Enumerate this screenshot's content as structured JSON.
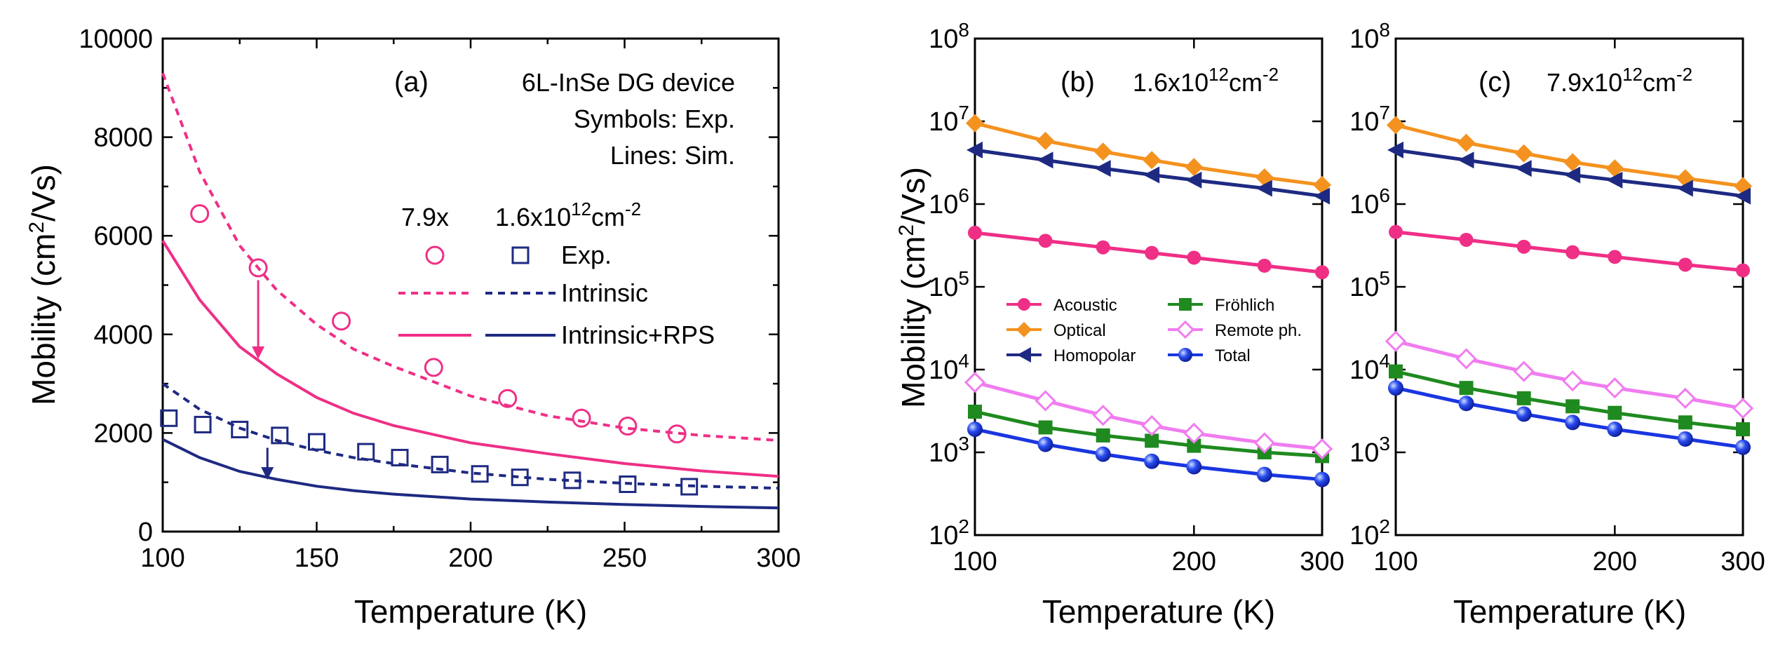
{
  "colors": {
    "pink": "#ef2f86",
    "navy": "#1e2a82",
    "orange": "#f4921f",
    "green": "#1f8a1f",
    "violet": "#f07cf0",
    "blue": "#1a36e0"
  },
  "chart_data": [
    {
      "type": "line",
      "panel": "(a)",
      "title": "6L-InSe DG device",
      "annotations": [
        "Symbols: Exp.",
        "Lines: Sim."
      ],
      "legend": {
        "col1_header": "7.9x",
        "col2_header": "1.6x10",
        "col2_header_sup": "12",
        "col2_header_unit": "cm",
        "col2_header_unit_sup": "-2",
        "row_exp": "Exp.",
        "row_intrinsic": "Intrinsic",
        "row_rps": "Intrinsic+RPS"
      },
      "xlabel": "Temperature (K)",
      "ylabel_main": "Mobility (cm",
      "ylabel_sup": "2",
      "ylabel_end": "/Vs)",
      "xlim": [
        100,
        300
      ],
      "ylim": [
        0,
        10000
      ],
      "xticks": [
        100,
        150,
        200,
        250,
        300
      ],
      "yticks": [
        0,
        2000,
        4000,
        6000,
        8000,
        10000
      ],
      "xtick_labels": [
        "100",
        "150",
        "200",
        "250",
        "300"
      ],
      "ytick_labels": [
        "0",
        "2000",
        "4000",
        "6000",
        "8000",
        "10000"
      ],
      "series": [
        {
          "name": "Exp. 7.9x10^12",
          "kind": "open-circle",
          "color": "#ef2f86",
          "x": [
            112,
            131,
            158,
            188,
            212,
            236,
            251,
            267
          ],
          "y": [
            6450,
            5350,
            4270,
            3330,
            2700,
            2300,
            2140,
            1980
          ]
        },
        {
          "name": "Exp. 1.6x10^12",
          "kind": "open-square",
          "color": "#1e2a82",
          "x": [
            102,
            113,
            125,
            138,
            150,
            166,
            177,
            190,
            203,
            216,
            233,
            251,
            271
          ],
          "y": [
            2300,
            2170,
            2070,
            1950,
            1820,
            1620,
            1500,
            1360,
            1170,
            1100,
            1040,
            960,
            910
          ]
        },
        {
          "name": "Intrinsic 7.9x10^12",
          "kind": "dashed",
          "color": "#ef2f86",
          "x": [
            100,
            112,
            125,
            137,
            150,
            162,
            175,
            200,
            225,
            250,
            275,
            300
          ],
          "y": [
            9300,
            7300,
            5800,
            4900,
            4200,
            3700,
            3350,
            2750,
            2350,
            2100,
            1950,
            1850
          ]
        },
        {
          "name": "Intrinsic 1.6x10^12",
          "kind": "dashed",
          "color": "#1e2a82",
          "x": [
            100,
            112,
            125,
            137,
            150,
            162,
            175,
            200,
            225,
            250,
            275,
            300
          ],
          "y": [
            3000,
            2480,
            2100,
            1850,
            1650,
            1500,
            1380,
            1190,
            1060,
            980,
            920,
            880
          ]
        },
        {
          "name": "Intrinsic+RPS 7.9x10^12",
          "kind": "solid",
          "color": "#ef2f86",
          "x": [
            100,
            112,
            125,
            137,
            150,
            162,
            175,
            200,
            225,
            250,
            275,
            300
          ],
          "y": [
            5900,
            4700,
            3750,
            3200,
            2720,
            2400,
            2150,
            1800,
            1580,
            1380,
            1230,
            1120
          ]
        },
        {
          "name": "Intrinsic+RPS 1.6x10^12",
          "kind": "solid",
          "color": "#1e2a82",
          "x": [
            100,
            112,
            125,
            137,
            150,
            162,
            175,
            200,
            225,
            250,
            275,
            300
          ],
          "y": [
            1870,
            1500,
            1220,
            1060,
            920,
            830,
            760,
            660,
            600,
            550,
            510,
            480
          ]
        }
      ],
      "arrows": [
        {
          "color": "#ef2f86",
          "x": 131,
          "y_from": 5100,
          "y_to": 3500
        },
        {
          "color": "#1e2a82",
          "x": 134,
          "y_from": 1700,
          "y_to": 1050
        }
      ]
    },
    {
      "type": "line",
      "panel": "(b)",
      "density": "1.6x10",
      "density_sup": "12",
      "density_unit": "cm",
      "density_unit_sup": "-2",
      "xlabel": "Temperature (K)",
      "ylabel_main": "Mobility (cm",
      "ylabel_sup": "2",
      "ylabel_end": "/Vs)",
      "xscale": "log",
      "yscale": "log",
      "xlim": [
        100,
        300
      ],
      "ylim": [
        100,
        100000000
      ],
      "xticks": [
        100,
        200,
        300
      ],
      "xtick_labels": [
        "100",
        "200",
        "300"
      ],
      "ytick_exponents": [
        "2",
        "3",
        "4",
        "5",
        "6",
        "7",
        "8"
      ],
      "ytick_base": "10",
      "legend": [
        "Acoustic",
        "Fröhlich",
        "Optical",
        "Remote ph.",
        "Homopolar",
        "Total"
      ],
      "x": [
        100,
        125,
        150,
        175,
        200,
        250,
        300
      ],
      "series": [
        {
          "name": "Acoustic",
          "marker": "circle",
          "color": "#ef2f86",
          "values": [
            450000,
            360000,
            300000,
            257000,
            225000,
            180000,
            150000
          ]
        },
        {
          "name": "Optical",
          "marker": "diamond",
          "color": "#f4921f",
          "values": [
            9500000,
            5800000,
            4300000,
            3400000,
            2800000,
            2100000,
            1700000
          ]
        },
        {
          "name": "Homopolar",
          "marker": "triangle-left",
          "color": "#1e2a82",
          "values": [
            4500000,
            3400000,
            2700000,
            2250000,
            1950000,
            1550000,
            1250000
          ]
        },
        {
          "name": "Fröhlich",
          "marker": "square",
          "color": "#1f8a1f",
          "values": [
            3100,
            2000,
            1600,
            1380,
            1200,
            1000,
            900
          ]
        },
        {
          "name": "Remote ph.",
          "marker": "open-diamond",
          "color": "#f07cf0",
          "values": [
            7000,
            4200,
            2800,
            2100,
            1700,
            1300,
            1100
          ]
        },
        {
          "name": "Total",
          "marker": "sphere",
          "color": "#1a36e0",
          "values": [
            1900,
            1250,
            950,
            780,
            670,
            540,
            470
          ]
        }
      ]
    },
    {
      "type": "line",
      "panel": "(c)",
      "density": "7.9x10",
      "density_sup": "12",
      "density_unit": "cm",
      "density_unit_sup": "-2",
      "xlabel": "Temperature (K)",
      "xscale": "log",
      "yscale": "log",
      "xlim": [
        100,
        300
      ],
      "ylim": [
        100,
        100000000
      ],
      "xticks": [
        100,
        200,
        300
      ],
      "xtick_labels": [
        "100",
        "200",
        "300"
      ],
      "ytick_exponents": [
        "2",
        "3",
        "4",
        "5",
        "6",
        "7",
        "8"
      ],
      "ytick_base": "10",
      "x": [
        100,
        125,
        150,
        175,
        200,
        250,
        300
      ],
      "series": [
        {
          "name": "Acoustic",
          "marker": "circle",
          "color": "#ef2f86",
          "values": [
            460000,
            370000,
            305000,
            262000,
            230000,
            185000,
            158000
          ]
        },
        {
          "name": "Optical",
          "marker": "diamond",
          "color": "#f4921f",
          "values": [
            9000000,
            5500000,
            4100000,
            3200000,
            2700000,
            2050000,
            1650000
          ]
        },
        {
          "name": "Homopolar",
          "marker": "triangle-left",
          "color": "#1e2a82",
          "values": [
            4500000,
            3400000,
            2700000,
            2250000,
            1950000,
            1550000,
            1250000
          ]
        },
        {
          "name": "Fröhlich",
          "marker": "square",
          "color": "#1f8a1f",
          "values": [
            9500,
            6000,
            4500,
            3600,
            3000,
            2300,
            1900
          ]
        },
        {
          "name": "Remote ph.",
          "marker": "open-diamond",
          "color": "#f07cf0",
          "values": [
            22000,
            13500,
            9500,
            7300,
            6000,
            4500,
            3400
          ]
        },
        {
          "name": "Total",
          "marker": "sphere",
          "color": "#1a36e0",
          "values": [
            6000,
            3900,
            2900,
            2300,
            1900,
            1450,
            1150
          ]
        }
      ]
    }
  ]
}
